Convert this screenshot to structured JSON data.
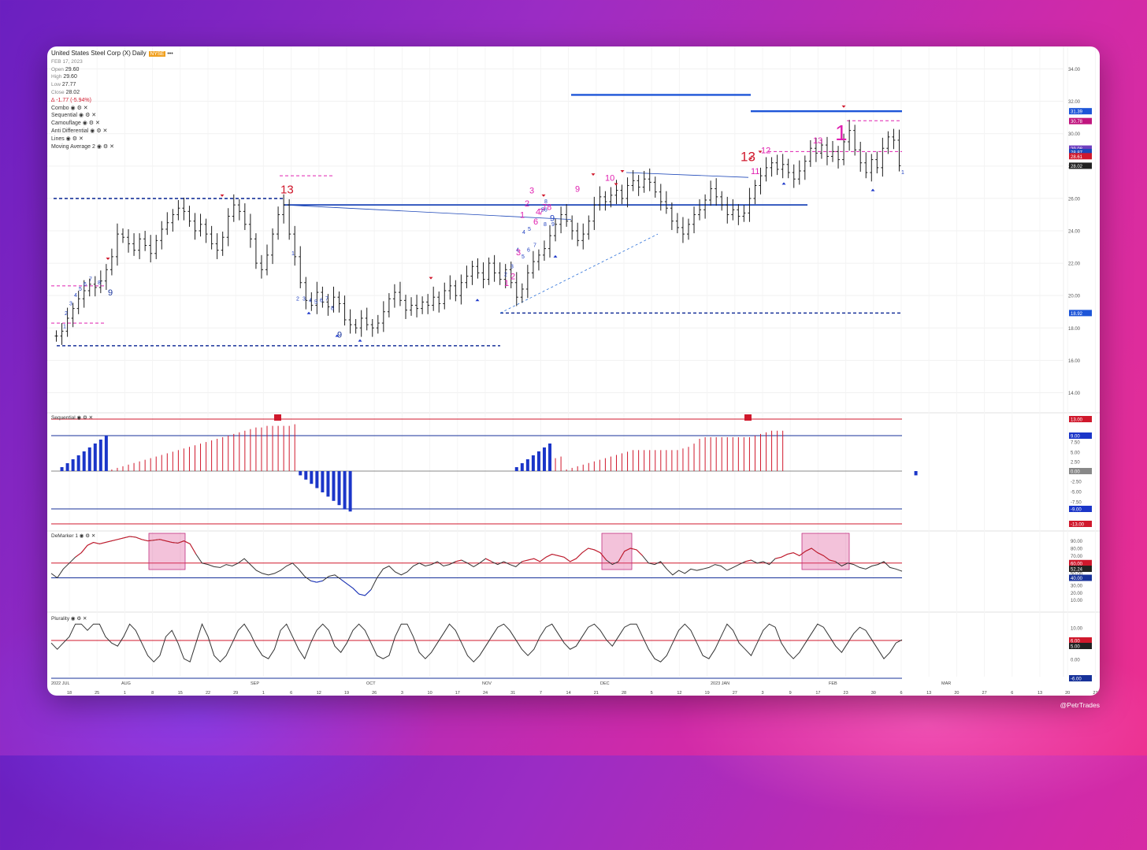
{
  "header": {
    "title": "United States Steel Corp (X)",
    "interval": "Daily",
    "exchange": "NYSE",
    "more": "•••",
    "date": "FEB 17, 2023",
    "open_label": "Open",
    "open": "29.60",
    "high_label": "High",
    "high": "29.60",
    "low_label": "Low",
    "low": "27.77",
    "close_label": "Close",
    "close": "28.02",
    "change": "-1.77 (-5.94%)",
    "indicators": [
      "Combo ◉ ⚙ ✕",
      "Sequential ◉ ⚙ ✕",
      "Camouflage ◉ ⚙ ✕",
      "Anti Differential ◉ ⚙ ✕",
      "Lines ◉ ⚙ ✕",
      "Moving Average 2 ◉ ⚙ ✕"
    ]
  },
  "credit": "@PetrTrades",
  "colors": {
    "buy": "#1b36c9",
    "sell": "#d0182c",
    "sell_pink": "#e020b0",
    "navy": "#17329a",
    "bar": "#1c1c1c"
  },
  "chart_data": [
    {
      "type": "ohlc",
      "ylim": [
        13,
        35
      ],
      "yticks": [
        "14.00",
        "16.00",
        "18.00",
        "20.00",
        "22.00",
        "24.00",
        "26.00",
        "28.00",
        "30.00",
        "32.00",
        "34.00"
      ],
      "xticks": [
        "18",
        "25",
        "1",
        "8",
        "15",
        "22",
        "29",
        "1",
        "6",
        "12",
        "19",
        "26",
        "3",
        "10",
        "17",
        "24",
        "31",
        "7",
        "14",
        "21",
        "28",
        "5",
        "12",
        "19",
        "27",
        "3",
        "9",
        "17",
        "23",
        "30",
        "6",
        "13",
        "20",
        "27",
        "6",
        "13",
        "20",
        "27"
      ],
      "months": [
        "2022 JUL",
        "AUG",
        "SEP",
        "OCT",
        "NOV",
        "DEC",
        "2023 JAN",
        "FEB",
        "MAR"
      ],
      "close": [
        17.5,
        17.8,
        18.6,
        19.2,
        19.8,
        20.3,
        20.7,
        20.5,
        20.9,
        21.6,
        22.4,
        23.8,
        23.6,
        23.2,
        22.8,
        23.5,
        23.1,
        22.6,
        23.4,
        24.1,
        24.5,
        25.0,
        25.4,
        25.2,
        24.6,
        24.0,
        24.4,
        23.8,
        23.2,
        22.8,
        23.6,
        24.9,
        25.6,
        25.2,
        24.4,
        23.5,
        22.0,
        21.6,
        22.5,
        23.8,
        25.0,
        25.6,
        23.8,
        22.4,
        20.8,
        19.7,
        19.4,
        20.2,
        19.6,
        19.3,
        19.9,
        19.5,
        18.5,
        18.2,
        18.0,
        18.6,
        18.2,
        18.0,
        18.3,
        19.0,
        19.8,
        20.2,
        19.7,
        19.1,
        19.4,
        19.2,
        19.6,
        19.4,
        19.9,
        19.5,
        20.3,
        20.6,
        20.0,
        20.8,
        21.2,
        21.8,
        21.4,
        21.0,
        22.0,
        21.4,
        21.0,
        21.6,
        20.8,
        19.9,
        20.4,
        21.4,
        22.1,
        22.5,
        22.9,
        23.7,
        24.4,
        25.0,
        24.6,
        24.0,
        23.4,
        23.8,
        24.6,
        25.6,
        26.1,
        25.8,
        26.2,
        26.5,
        26.0,
        26.8,
        27.1,
        26.7,
        27.2,
        27.0,
        26.4,
        25.8,
        25.4,
        24.6,
        24.2,
        23.8,
        24.4,
        25.0,
        25.3,
        25.9,
        26.6,
        26.1,
        25.6,
        25.0,
        25.3,
        24.9,
        25.1,
        26.0,
        26.8,
        27.4,
        27.9,
        28.2,
        27.8,
        28.1,
        27.6,
        27.2,
        27.7,
        28.3,
        29.1,
        28.8,
        29.3,
        28.6,
        28.9,
        28.4,
        29.5,
        30.2,
        29.0,
        28.2,
        27.6,
        28.4,
        27.9,
        29.1,
        29.8,
        29.6,
        28.02
      ],
      "seq_hist": [
        0,
        1,
        2,
        3,
        4,
        5,
        6,
        7,
        8,
        9,
        1,
        2,
        3,
        4,
        5,
        6,
        7,
        8,
        9,
        10,
        11,
        12,
        13,
        14,
        15,
        16,
        17,
        18,
        19,
        20,
        21,
        22,
        23,
        24,
        25,
        26,
        27,
        27,
        28,
        28,
        28,
        28,
        28,
        29,
        -1,
        -2,
        -3,
        -4,
        -5,
        -6,
        -7,
        -8,
        -9,
        -9.5,
        0,
        0,
        0,
        0,
        0,
        0,
        0,
        0,
        0,
        0,
        0,
        0,
        0,
        0,
        0,
        0,
        0,
        0,
        0,
        0,
        0,
        0,
        0,
        0,
        0,
        0,
        0,
        0,
        0,
        1,
        2,
        3,
        4,
        5,
        6,
        7,
        8,
        9,
        1,
        2,
        3,
        4,
        5,
        6,
        7,
        8,
        9,
        10,
        11,
        12,
        13,
        13,
        13,
        13,
        13,
        13,
        13,
        13,
        13,
        14,
        15,
        17,
        20,
        21,
        21,
        21,
        21,
        21,
        21,
        21,
        21,
        21,
        22,
        23,
        24,
        25,
        25,
        25,
        0,
        0,
        0,
        0,
        0,
        0,
        0,
        0,
        0,
        0,
        0,
        0,
        0,
        0,
        0,
        0,
        0,
        0,
        0,
        0,
        0,
        0,
        0,
        -1
      ],
      "seq_axis": [
        "13.00",
        "9.00",
        "7.50",
        "5.00",
        "2.50",
        "0.00",
        "-2.50",
        "-5.00",
        "-7.50",
        "-9.00",
        "-13.00"
      ],
      "demarker": [
        0.46,
        0.4,
        0.52,
        0.6,
        0.68,
        0.74,
        0.84,
        0.88,
        0.86,
        0.88,
        0.9,
        0.92,
        0.94,
        0.96,
        0.95,
        0.92,
        0.9,
        0.91,
        0.92,
        0.9,
        0.88,
        0.87,
        0.9,
        0.86,
        0.72,
        0.6,
        0.58,
        0.55,
        0.54,
        0.58,
        0.56,
        0.6,
        0.66,
        0.58,
        0.5,
        0.46,
        0.44,
        0.46,
        0.5,
        0.56,
        0.6,
        0.52,
        0.42,
        0.36,
        0.34,
        0.36,
        0.42,
        0.44,
        0.38,
        0.32,
        0.26,
        0.18,
        0.16,
        0.24,
        0.4,
        0.52,
        0.56,
        0.48,
        0.44,
        0.48,
        0.56,
        0.6,
        0.56,
        0.58,
        0.62,
        0.56,
        0.58,
        0.62,
        0.64,
        0.6,
        0.55,
        0.6,
        0.66,
        0.62,
        0.58,
        0.62,
        0.58,
        0.55,
        0.62,
        0.64,
        0.66,
        0.62,
        0.68,
        0.72,
        0.7,
        0.68,
        0.62,
        0.66,
        0.74,
        0.8,
        0.78,
        0.74,
        0.64,
        0.58,
        0.62,
        0.76,
        0.8,
        0.78,
        0.7,
        0.6,
        0.58,
        0.62,
        0.52,
        0.44,
        0.5,
        0.46,
        0.52,
        0.5,
        0.52,
        0.54,
        0.58,
        0.56,
        0.5,
        0.54,
        0.58,
        0.62,
        0.64,
        0.6,
        0.62,
        0.58,
        0.66,
        0.68,
        0.72,
        0.74,
        0.7,
        0.76,
        0.8,
        0.74,
        0.7,
        0.64,
        0.62,
        0.56,
        0.6,
        0.58,
        0.54,
        0.52,
        0.56,
        0.58,
        0.62,
        0.54,
        0.52,
        0.49
      ],
      "demarker_axis": [
        "90.00",
        "80.00",
        "70.00",
        "60.00",
        "52.24",
        "50.00",
        "40.00",
        "30.00",
        "20.00",
        "10.00"
      ],
      "plurality": [
        6,
        4,
        6,
        8,
        12,
        12,
        10,
        12,
        12,
        8,
        6,
        5,
        8,
        12,
        10,
        6,
        2,
        0,
        2,
        8,
        10,
        6,
        1,
        0,
        6,
        12,
        8,
        2,
        0,
        2,
        6,
        10,
        12,
        9,
        5,
        2,
        1,
        4,
        10,
        12,
        8,
        4,
        1,
        6,
        10,
        12,
        10,
        5,
        3,
        6,
        10,
        12,
        10,
        6,
        2,
        1,
        2,
        8,
        12,
        12,
        8,
        3,
        1,
        3,
        6,
        9,
        12,
        10,
        6,
        2,
        0,
        2,
        5,
        8,
        11,
        12,
        10,
        7,
        4,
        2,
        4,
        8,
        11,
        12,
        9,
        6,
        4,
        5,
        8,
        11,
        12,
        10,
        7,
        5,
        8,
        11,
        12,
        12,
        8,
        4,
        1,
        0,
        2,
        6,
        10,
        12,
        10,
        6,
        2,
        1,
        4,
        8,
        12,
        10,
        6,
        4,
        2,
        6,
        10,
        12,
        11,
        6,
        3,
        1,
        3,
        6,
        9,
        12,
        11,
        8,
        5,
        3,
        6,
        9,
        11,
        10,
        7,
        4,
        1,
        3,
        6,
        7
      ],
      "plurality_axis": [
        "10.00",
        "6.00",
        "5.00",
        "0.00",
        "-6.00"
      ],
      "price_labels": [
        "31.39",
        "30.78",
        "29.08",
        "28.87",
        "28.61",
        "28.02",
        "18.92"
      ],
      "panel_titles": [
        "Sequential ◉ ⚙ ✕",
        "DeMarker 1 ◉ ⚙ ✕",
        "Plurality ◉ ⚙ ✕"
      ],
      "annotations": [
        "9",
        "2",
        "3",
        "4",
        "5",
        "6",
        "7",
        "8",
        "1",
        "2",
        "3",
        "4",
        "5",
        "6",
        "7",
        "8",
        "9",
        "13",
        "1",
        "2",
        "3",
        "4",
        "5",
        "6",
        "7",
        "8",
        "9",
        "1",
        "2",
        "3",
        "4",
        "5",
        "6",
        "7",
        "8",
        "9",
        "1",
        "2",
        "3",
        "4",
        "56",
        "78",
        "9",
        "10",
        "11",
        "12",
        "13",
        "1",
        "1"
      ]
    }
  ]
}
